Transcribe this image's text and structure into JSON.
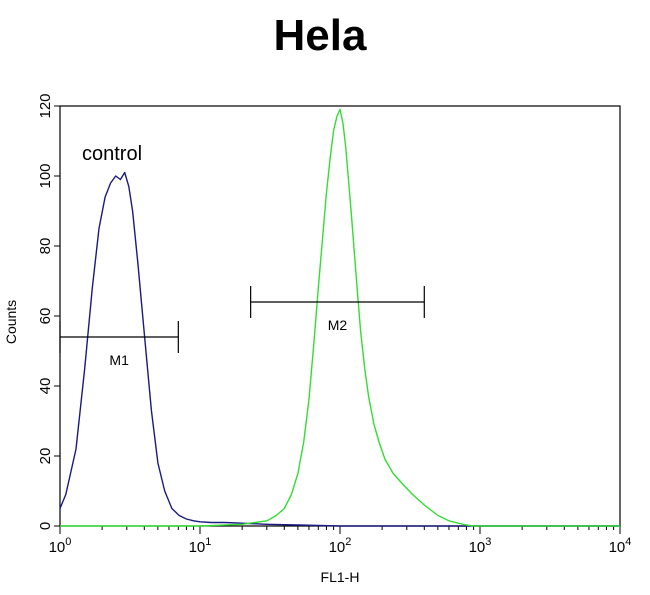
{
  "chart_data": {
    "type": "line",
    "title": "Hela",
    "xlabel": "FL1-H",
    "ylabel": "Counts",
    "x_scale": "log",
    "xlim": [
      1,
      10000
    ],
    "ylim": [
      0,
      120
    ],
    "x_ticks": [
      {
        "base": "10",
        "exp": "0",
        "value": 1
      },
      {
        "base": "10",
        "exp": "1",
        "value": 10
      },
      {
        "base": "10",
        "exp": "2",
        "value": 100
      },
      {
        "base": "10",
        "exp": "3",
        "value": 1000
      },
      {
        "base": "10",
        "exp": "4",
        "value": 10000
      }
    ],
    "y_ticks": [
      0,
      20,
      40,
      60,
      80,
      100,
      120
    ],
    "annotation": "control",
    "series": [
      {
        "color": "#1a1a80",
        "x": [
          1.0,
          1.1,
          1.3,
          1.5,
          1.7,
          1.9,
          2.1,
          2.3,
          2.5,
          2.7,
          2.9,
          3.1,
          3.3,
          3.6,
          4.0,
          4.5,
          5.0,
          5.6,
          6.3,
          7.1,
          8.0,
          9.0,
          10,
          12,
          15,
          20,
          30,
          50,
          100,
          300,
          1000,
          10000
        ],
        "y": [
          5,
          9,
          22,
          45,
          68,
          85,
          94,
          98,
          100,
          99,
          101,
          97,
          90,
          75,
          55,
          33,
          18,
          10,
          5,
          3,
          2,
          1.5,
          1.2,
          1,
          1,
          0.8,
          0.5,
          0.3,
          0,
          0,
          0,
          0
        ]
      },
      {
        "color": "#33dd33",
        "x": [
          1,
          5,
          10,
          20,
          30,
          35,
          40,
          45,
          50,
          55,
          60,
          65,
          70,
          75,
          80,
          85,
          90,
          95,
          100,
          105,
          110,
          120,
          130,
          140,
          150,
          160,
          175,
          190,
          210,
          240,
          280,
          330,
          400,
          500,
          600,
          700,
          800,
          900,
          10000
        ],
        "y": [
          0,
          0,
          0,
          0.5,
          1.5,
          3,
          5,
          9,
          15,
          24,
          36,
          52,
          68,
          82,
          95,
          105,
          113,
          117,
          119,
          115,
          108,
          90,
          72,
          56,
          45,
          37,
          29,
          24,
          19,
          15,
          12,
          9,
          6,
          3,
          1.5,
          0.8,
          0.3,
          0,
          0
        ]
      }
    ],
    "markers": [
      {
        "label": "M1",
        "x_start": 1.0,
        "x_end": 7.0,
        "y": 54
      },
      {
        "label": "M2",
        "x_start": 23,
        "x_end": 400,
        "y": 64
      }
    ],
    "grid": false
  }
}
